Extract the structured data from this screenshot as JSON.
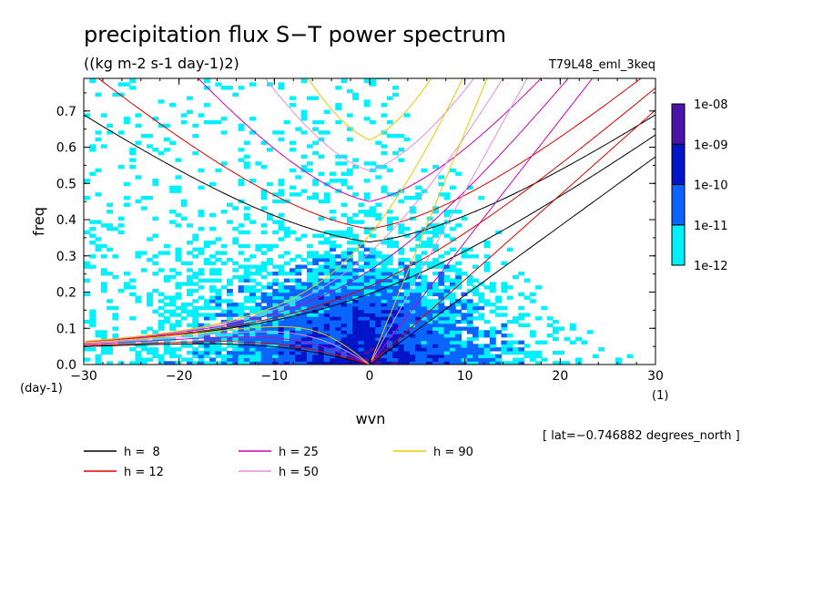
{
  "chart_data": {
    "type": "heatmap",
    "title": "precipitation flux S−T power spectrum",
    "units": "((kg m-2 s-1 day-1)2)",
    "model": "T79L48_eml_3keq",
    "xlabel": "wvn",
    "ylabel": "freq",
    "x_unit_label": "(1)",
    "y_unit_label": "(day-1)",
    "xlim": [
      -30,
      30
    ],
    "ylim": [
      0,
      0.79
    ],
    "x_ticks": [
      -30,
      -20,
      -10,
      0,
      10,
      20,
      30
    ],
    "x_tick_labels": [
      "−30",
      "−20",
      "−10",
      "0",
      "10",
      "20",
      "30"
    ],
    "y_ticks": [
      0,
      0.1,
      0.2,
      0.3,
      0.4,
      0.5,
      0.6,
      0.7
    ],
    "y_tick_labels": [
      "0.0",
      "0.1",
      "0.2",
      "0.3",
      "0.4",
      "0.5",
      "0.6",
      "0.7"
    ],
    "colorbar": {
      "levels": [
        "1e-12",
        "1e-11",
        "1e-10",
        "1e-09",
        "1e-08"
      ],
      "colors": [
        "#00f0ff",
        "#0a64ff",
        "#0014c8",
        "#4a14a8"
      ]
    },
    "dispersion_curves": [
      {
        "name": "h =  8",
        "h": 8,
        "color": "#000000"
      },
      {
        "name": "h = 12",
        "h": 12,
        "color": "#e00000"
      },
      {
        "name": "h = 25",
        "h": 25,
        "color": "#d000b0"
      },
      {
        "name": "h = 50",
        "h": 50,
        "color": "#e090e0"
      },
      {
        "name": "h = 90",
        "h": 90,
        "color": "#f0c800"
      }
    ],
    "annotation": "[ lat=−0.746882 degrees_north ]"
  }
}
